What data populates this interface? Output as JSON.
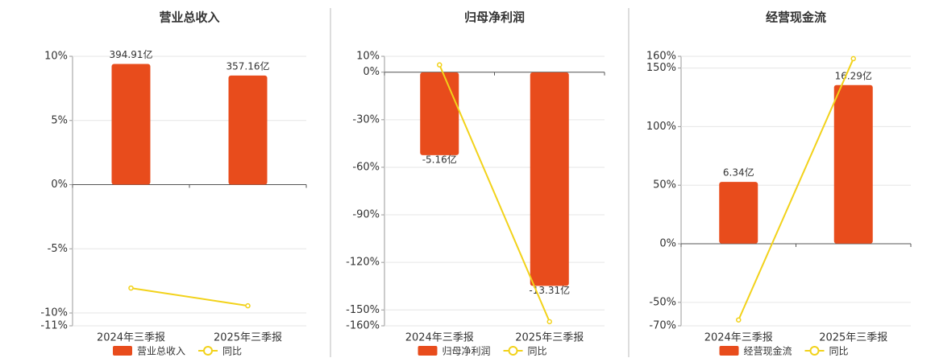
{
  "chart_data": [
    {
      "type": "combo",
      "title": "营业总收入",
      "categories": [
        "2024年三季报",
        "2025年三季报"
      ],
      "series": [
        {
          "name": "营业总收入",
          "color": "#e84c1c",
          "type": "bar",
          "axis": "y2",
          "values": [
            394.91,
            357.16
          ],
          "value_labels": [
            "394.91亿",
            "357.16亿"
          ]
        },
        {
          "name": "同比",
          "color": "#f2d21a",
          "type": "line",
          "values": [
            -8.06,
            -9.44
          ]
        }
      ],
      "ylim": [
        -11,
        10
      ],
      "yticks": [
        {
          "value": 10,
          "label": "10%"
        },
        {
          "value": 5,
          "label": "5%"
        },
        {
          "value": 0,
          "label": "0%"
        },
        {
          "value": -5,
          "label": "-5%"
        },
        {
          "value": -10,
          "label": "-10%"
        },
        {
          "value": -11,
          "label": "-11%"
        }
      ],
      "y2lim": [
        -462,
        420
      ],
      "grid": true
    },
    {
      "type": "combo",
      "title": "归母净利润",
      "categories": [
        "2024年三季报",
        "2025年三季报"
      ],
      "series": [
        {
          "name": "归母净利润",
          "color": "#e84c1c",
          "type": "bar",
          "axis": "y2",
          "values": [
            -5.16,
            -13.31
          ],
          "value_labels": [
            "-5.16亿",
            "-13.31亿"
          ]
        },
        {
          "name": "同比",
          "color": "#f2d21a",
          "type": "line",
          "values": [
            4.6,
            -157.4
          ]
        }
      ],
      "ylim": [
        -160,
        10
      ],
      "yticks": [
        {
          "value": 10,
          "label": "10%"
        },
        {
          "value": 0,
          "label": "0%"
        },
        {
          "value": -30,
          "label": "-30%"
        },
        {
          "value": -60,
          "label": "-60%"
        },
        {
          "value": -90,
          "label": "-90%"
        },
        {
          "value": -120,
          "label": "-120%"
        },
        {
          "value": -150,
          "label": "-150%"
        },
        {
          "value": -160,
          "label": "-160%"
        }
      ],
      "y2lim": [
        -15.8,
        1.0
      ],
      "grid": true
    },
    {
      "type": "combo",
      "title": "经营现金流",
      "categories": [
        "2024年三季报",
        "2025年三季报"
      ],
      "series": [
        {
          "name": "经营现金流",
          "color": "#e84c1c",
          "type": "bar",
          "axis": "y2",
          "values": [
            6.34,
            16.29
          ],
          "value_labels": [
            "6.34亿",
            "16.29亿"
          ]
        },
        {
          "name": "同比",
          "color": "#f2d21a",
          "type": "line",
          "values": [
            -65,
            158
          ]
        }
      ],
      "ylim": [
        -70,
        160
      ],
      "yticks": [
        {
          "value": 160,
          "label": "160%"
        },
        {
          "value": 150,
          "label": "150%"
        },
        {
          "value": 100,
          "label": "100%"
        },
        {
          "value": 50,
          "label": "50%"
        },
        {
          "value": 0,
          "label": "0%"
        },
        {
          "value": -50,
          "label": "-50%"
        },
        {
          "value": -70,
          "label": "-70%"
        }
      ],
      "y2lim": [
        -8.46,
        19.25
      ],
      "grid": true
    }
  ]
}
